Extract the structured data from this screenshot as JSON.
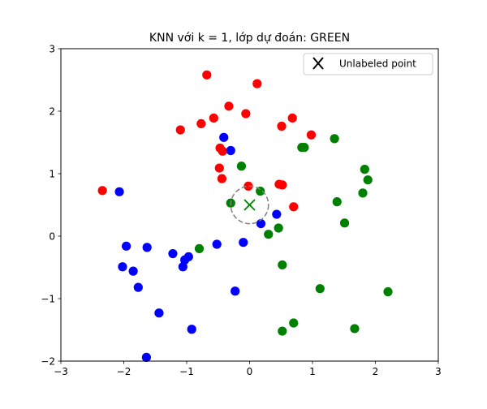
{
  "chart_data": {
    "type": "scatter",
    "title": "KNN với k = 1, lớp dự đoán: GREEN",
    "xlabel": "",
    "ylabel": "",
    "xlim": [
      -3,
      3
    ],
    "ylim": [
      -2,
      3
    ],
    "xticks": [
      "−3",
      "−2",
      "−1",
      "0",
      "1",
      "2",
      "3"
    ],
    "yticks": [
      "−2",
      "−1",
      "0",
      "1",
      "2",
      "3"
    ],
    "grid": false,
    "legend_position": "top-right",
    "series": [
      {
        "color": "#ff0000",
        "points": [
          [
            -0.68,
            2.58
          ],
          [
            0.12,
            2.44
          ],
          [
            -0.33,
            2.08
          ],
          [
            -0.06,
            1.96
          ],
          [
            0.68,
            1.89
          ],
          [
            -0.57,
            1.89
          ],
          [
            -0.77,
            1.8
          ],
          [
            -1.1,
            1.7
          ],
          [
            0.51,
            1.76
          ],
          [
            0.98,
            1.62
          ],
          [
            -0.47,
            1.41
          ],
          [
            -0.43,
            1.36
          ],
          [
            -0.48,
            1.09
          ],
          [
            -0.44,
            0.92
          ],
          [
            0.47,
            0.83
          ],
          [
            0.52,
            0.82
          ],
          [
            -0.02,
            0.8
          ],
          [
            -2.34,
            0.73
          ],
          [
            0.7,
            0.47
          ]
        ]
      },
      {
        "color": "#0000ff",
        "points": [
          [
            -0.41,
            1.58
          ],
          [
            -0.3,
            1.37
          ],
          [
            -2.07,
            0.71
          ],
          [
            0.43,
            0.35
          ],
          [
            0.18,
            0.2
          ],
          [
            -1.96,
            -0.16
          ],
          [
            -1.63,
            -0.18
          ],
          [
            -0.52,
            -0.13
          ],
          [
            -0.1,
            -0.1
          ],
          [
            -1.22,
            -0.28
          ],
          [
            -0.97,
            -0.33
          ],
          [
            -1.03,
            -0.38
          ],
          [
            -2.02,
            -0.49
          ],
          [
            -1.85,
            -0.56
          ],
          [
            -1.06,
            -0.49
          ],
          [
            -1.77,
            -0.82
          ],
          [
            -0.23,
            -0.88
          ],
          [
            -1.44,
            -1.23
          ],
          [
            -0.92,
            -1.49
          ],
          [
            -1.64,
            -1.94
          ]
        ]
      },
      {
        "color": "#008000",
        "points": [
          [
            0.83,
            1.42
          ],
          [
            0.87,
            1.42
          ],
          [
            1.35,
            1.56
          ],
          [
            -0.13,
            1.12
          ],
          [
            1.83,
            1.07
          ],
          [
            1.88,
            0.9
          ],
          [
            1.8,
            0.69
          ],
          [
            1.39,
            0.55
          ],
          [
            0.17,
            0.72
          ],
          [
            -0.3,
            0.53
          ],
          [
            1.51,
            0.21
          ],
          [
            0.46,
            0.13
          ],
          [
            0.3,
            0.03
          ],
          [
            -0.8,
            -0.2
          ],
          [
            0.52,
            -0.46
          ],
          [
            1.12,
            -0.84
          ],
          [
            2.2,
            -0.89
          ],
          [
            0.7,
            -1.39
          ],
          [
            1.67,
            -1.48
          ],
          [
            0.52,
            -1.52
          ]
        ]
      }
    ],
    "unlabeled_point": {
      "x": 0.0,
      "y": 0.5,
      "color": "#008000",
      "marker": "x",
      "label": "Unlabeled point"
    },
    "neighbor_radius": 0.3
  }
}
